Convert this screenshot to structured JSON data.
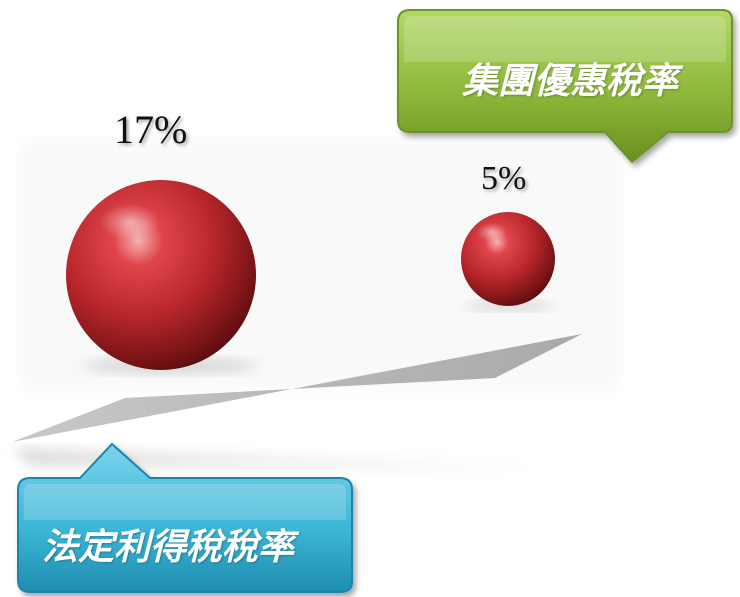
{
  "colors": {
    "sphere": "#b8272b",
    "green_callout": "#8db83a",
    "blue_callout": "#3eb8d8",
    "scale_beam": "#b9b9b9"
  },
  "spheres": [
    {
      "label": "17%",
      "value": 17
    },
    {
      "label": "5%",
      "value": 5
    }
  ],
  "callouts": {
    "group_rate": "集團優惠稅率",
    "statutory_rate": "法定利得稅稅率"
  }
}
